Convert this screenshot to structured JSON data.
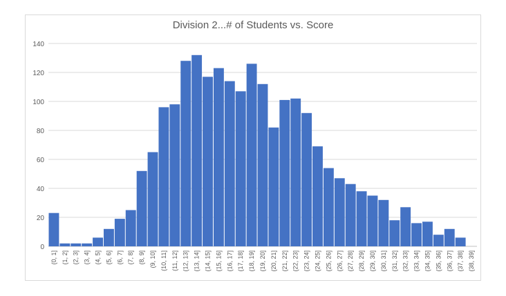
{
  "chart_data": {
    "type": "bar",
    "title": "Division 2...# of Students vs. Score",
    "xlabel": "",
    "ylabel": "",
    "ylim": [
      0,
      140
    ],
    "yticks": [
      0,
      20,
      40,
      60,
      80,
      100,
      120,
      140
    ],
    "grid": true,
    "legend": "none",
    "bar_color": "#4472c4",
    "categories": [
      "(0, 1]",
      "(1, 2]",
      "(2, 3]",
      "(3, 4]",
      "(4, 5]",
      "(5, 6]",
      "(6, 7]",
      "(7, 8]",
      "(8, 9]",
      "(9, 10]",
      "(10, 11]",
      "(11, 12]",
      "(12, 13]",
      "(13, 14]",
      "(14, 15]",
      "(15, 16]",
      "(16, 17]",
      "(17, 18]",
      "(18, 19]",
      "(19, 20]",
      "(20, 21]",
      "(21, 22]",
      "(22, 23]",
      "(23, 24]",
      "(24, 25]",
      "(25, 26]",
      "(26, 27]",
      "(27, 28]",
      "(28, 29]",
      "(29, 30]",
      "(30, 31]",
      "(31, 32]",
      "(32, 33]",
      "(33, 34]",
      "(34, 35]",
      "(35, 36]",
      "(36, 37]",
      "(37, 38]",
      "(38, 39]"
    ],
    "values": [
      23,
      2,
      2,
      2,
      6,
      12,
      19,
      25,
      52,
      65,
      96,
      98,
      128,
      132,
      117,
      123,
      114,
      107,
      126,
      112,
      82,
      101,
      102,
      92,
      69,
      54,
      47,
      43,
      38,
      35,
      32,
      18,
      27,
      16,
      17,
      8,
      12,
      6,
      0
    ]
  }
}
